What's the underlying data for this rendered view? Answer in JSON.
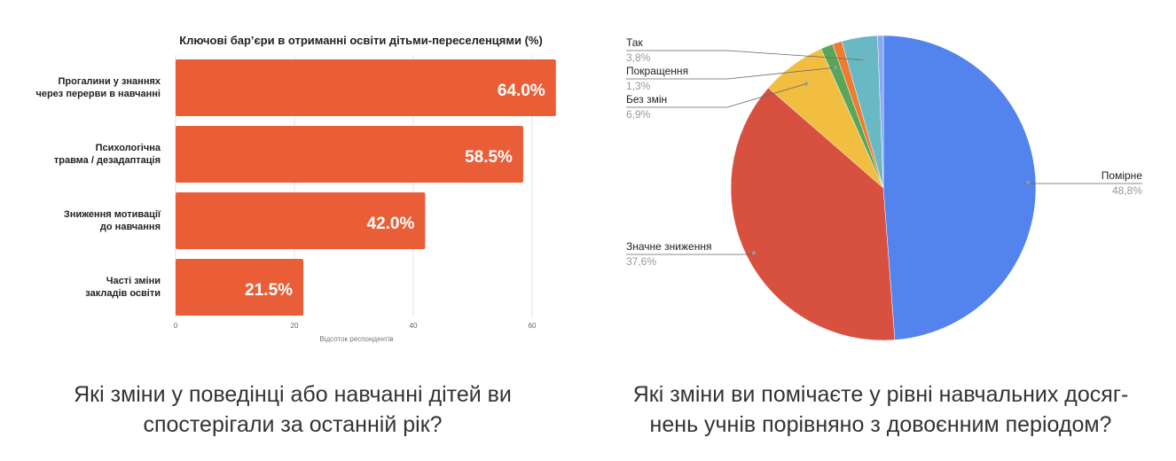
{
  "chart_data": [
    {
      "type": "bar",
      "orientation": "horizontal",
      "title": "Ключові бар’єри в отриманні освіти дітьми-переселенцями (%)",
      "categories": [
        [
          "Прогалини у знаннях",
          "через перерви в навчанні"
        ],
        [
          "Психологічна",
          "травма / дезадаптація"
        ],
        [
          "Зниження мотивації",
          "до навчання"
        ],
        [
          "Часті зміни",
          "закладів освіти"
        ]
      ],
      "values": [
        64.0,
        58.5,
        42.0,
        21.5
      ],
      "data_labels": [
        "64.0%",
        "58.5%",
        "42.0%",
        "21.5%"
      ],
      "xlabel": "Відсоток респондентів",
      "xlim": [
        0,
        65
      ],
      "xticks": [
        "0",
        "20",
        "40",
        "60"
      ],
      "xtick_values": [
        0,
        20,
        40,
        60
      ],
      "bar_color": "#EA5E37",
      "grid": true
    },
    {
      "type": "pie",
      "slices": [
        {
          "label": "Помірне",
          "value": 48.8,
          "text": "48,8%",
          "color": "#5383EC",
          "labeled": true
        },
        {
          "label": "Значне зниження",
          "value": 37.6,
          "text": "37,6%",
          "color": "#D85140",
          "labeled": true
        },
        {
          "label": "Без змін",
          "value": 6.9,
          "text": "6,9%",
          "color": "#F1BE42",
          "labeled": true
        },
        {
          "label": "Покращення",
          "value": 1.3,
          "text": "1,3%",
          "color": "#58A65C",
          "labeled": true
        },
        {
          "label": "",
          "value": 1.0,
          "text": "",
          "color": "#EE7B30",
          "labeled": false
        },
        {
          "label": "Так",
          "value": 3.8,
          "text": "3,8%",
          "color": "#69B9C5",
          "labeled": true
        },
        {
          "label": "",
          "value": 0.6,
          "text": "",
          "color": "#8AA8F0",
          "labeled": false
        }
      ]
    }
  ],
  "captions": {
    "left": [
      "Які зміни у поведінці або навчанні дітей ви",
      "спостерігали за останній рік?"
    ],
    "right": [
      "Які зміни ви помічаєте у рівні навчальних досяг-",
      "нень учнів порівняно з довоєнним періодом?"
    ]
  }
}
